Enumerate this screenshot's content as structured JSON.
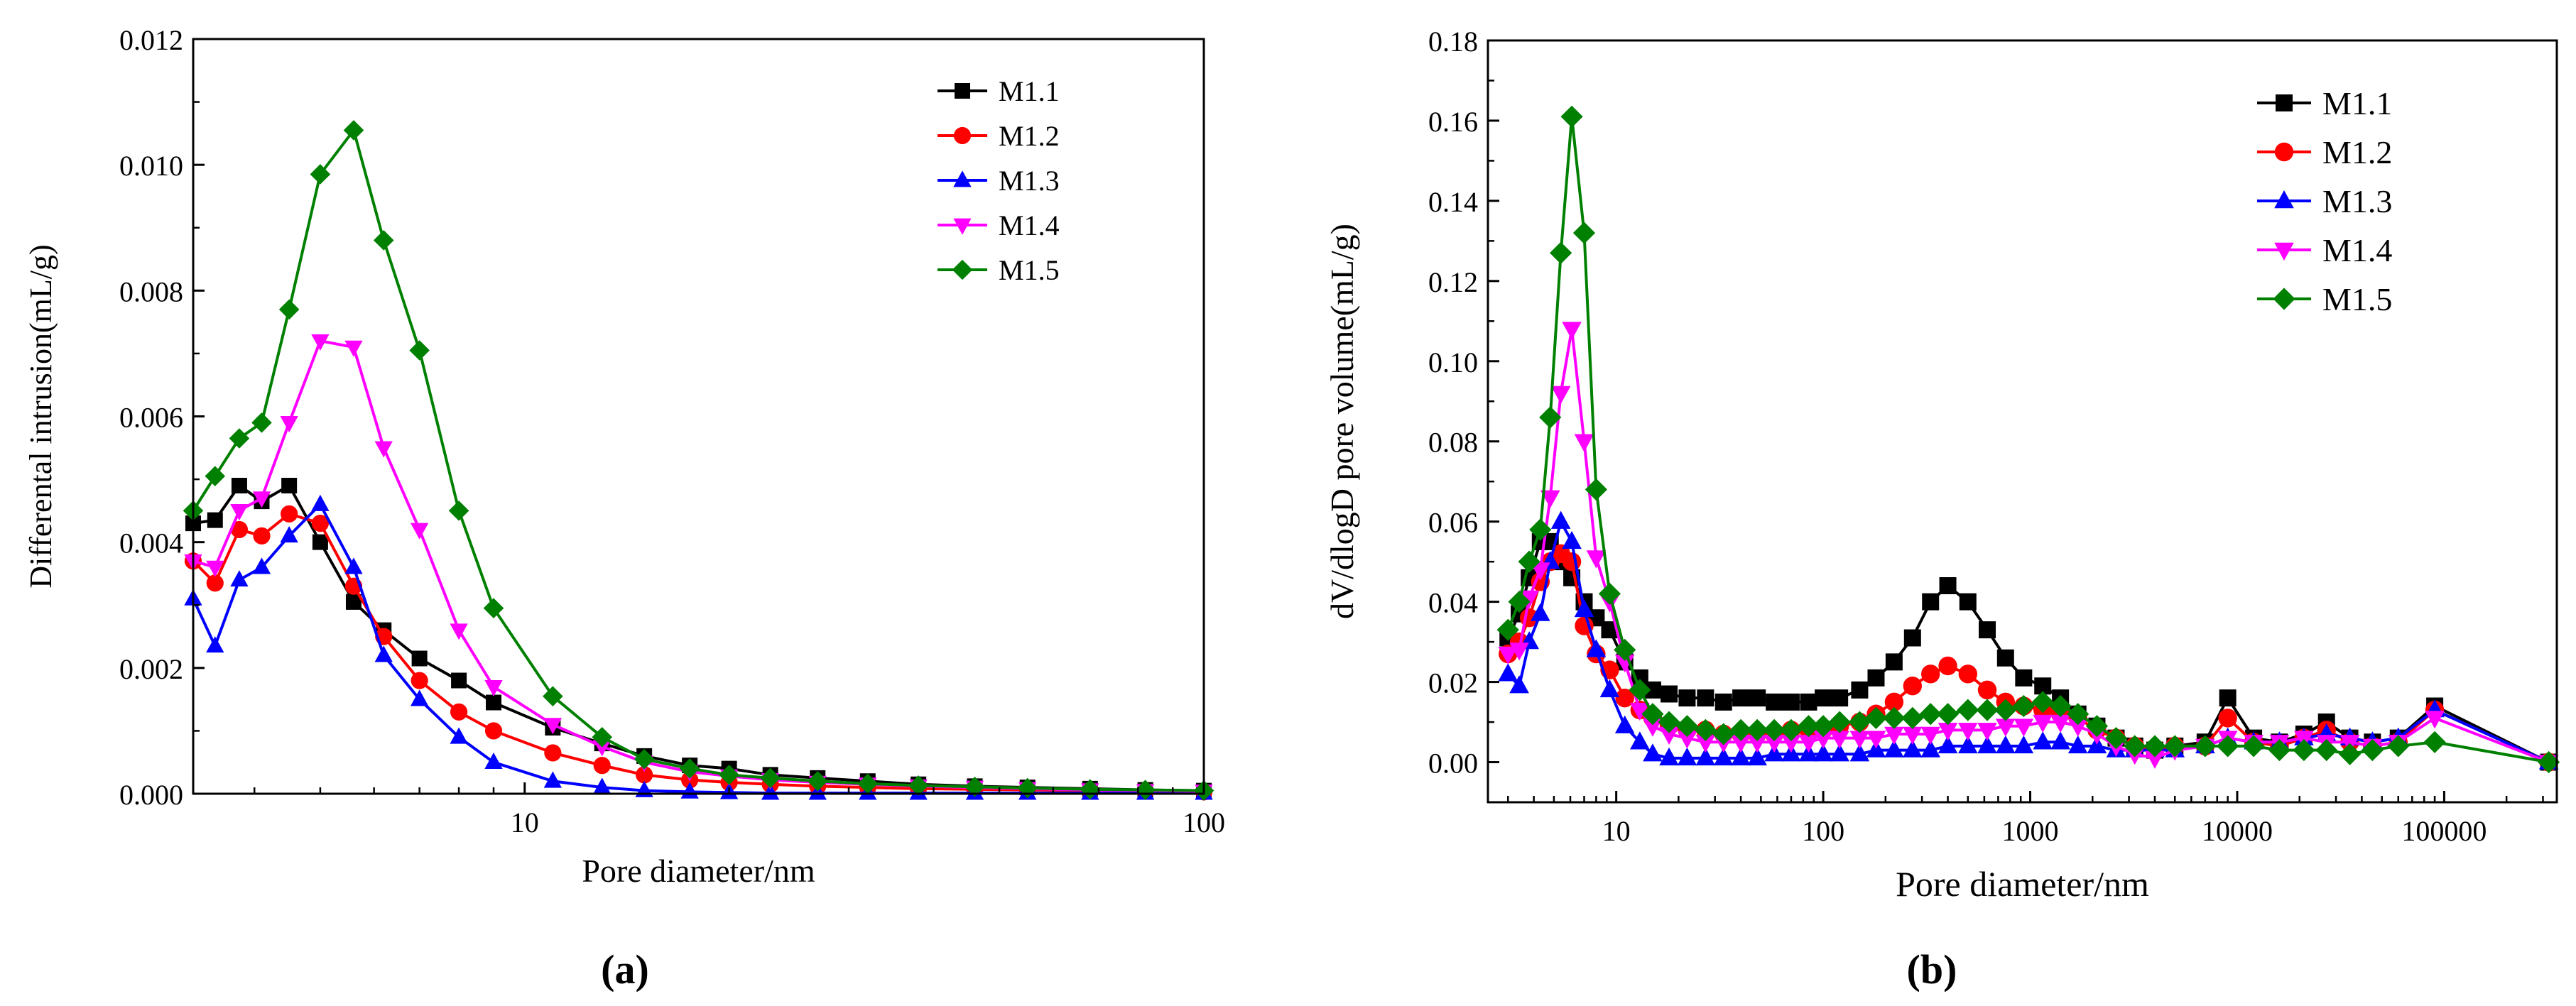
{
  "figure": {
    "panel_labels": [
      "(a)",
      "(b)"
    ]
  },
  "series_styles": [
    {
      "name": "M1.1",
      "color": "#000000",
      "marker": "square"
    },
    {
      "name": "M1.2",
      "color": "#ff0000",
      "marker": "circle"
    },
    {
      "name": "M1.3",
      "color": "#0000ff",
      "marker": "triangle-up"
    },
    {
      "name": "M1.4",
      "color": "#ff00ff",
      "marker": "triangle-down"
    },
    {
      "name": "M1.5",
      "color": "#008000",
      "marker": "diamond"
    }
  ],
  "chart_data": [
    {
      "type": "line",
      "panel": "(a)",
      "title": "",
      "xlabel": "Pore diameter/nm",
      "ylabel": "Differental intrusion(mL/g)",
      "xscale": "log",
      "xlim": [
        3.25,
        100
      ],
      "ylim": [
        0,
        0.012
      ],
      "xticks": [
        10,
        100
      ],
      "xtick_labels": [
        "10",
        "100"
      ],
      "yticks": [
        0,
        0.002,
        0.004,
        0.006,
        0.008,
        0.01,
        0.012
      ],
      "ytick_labels": [
        "0.000",
        "0.002",
        "0.004",
        "0.006",
        "0.008",
        "0.010",
        "0.012"
      ],
      "legend_position": "top-right",
      "x": [
        3.25,
        3.5,
        3.8,
        4.1,
        4.5,
        5.0,
        5.6,
        6.2,
        7.0,
        8.0,
        9.0,
        11.0,
        13.0,
        15.0,
        17.5,
        20.0,
        23.0,
        27.0,
        32.0,
        38.0,
        46.0,
        55.0,
        68.0,
        82.0,
        100.0
      ],
      "series": [
        {
          "name": "M1.1",
          "values": [
            0.0043,
            0.00435,
            0.0049,
            0.00465,
            0.0049,
            0.004,
            0.00305,
            0.0026,
            0.00215,
            0.0018,
            0.00145,
            0.00105,
            0.0008,
            0.0006,
            0.00045,
            0.0004,
            0.0003,
            0.00025,
            0.0002,
            0.00015,
            0.00012,
            0.0001,
            8e-05,
            6e-05,
            5e-05
          ]
        },
        {
          "name": "M1.2",
          "values": [
            0.0037,
            0.00335,
            0.0042,
            0.0041,
            0.00445,
            0.0043,
            0.0033,
            0.0025,
            0.0018,
            0.0013,
            0.001,
            0.00065,
            0.00045,
            0.0003,
            0.00022,
            0.00018,
            0.00015,
            0.00012,
            0.0001,
            8e-05,
            7e-05,
            6e-05,
            5e-05,
            4e-05,
            3e-05
          ]
        },
        {
          "name": "M1.3",
          "values": [
            0.0031,
            0.00235,
            0.0034,
            0.0036,
            0.0041,
            0.0046,
            0.0036,
            0.0022,
            0.0015,
            0.0009,
            0.0005,
            0.0002,
            0.0001,
            5e-05,
            3e-05,
            2e-05,
            1e-05,
            1e-05,
            1e-05,
            1e-05,
            1e-05,
            1e-05,
            1e-05,
            1e-05,
            1e-05
          ]
        },
        {
          "name": "M1.4",
          "values": [
            0.0037,
            0.0036,
            0.0045,
            0.0047,
            0.0059,
            0.0072,
            0.0071,
            0.0055,
            0.0042,
            0.0026,
            0.0017,
            0.0011,
            0.00075,
            0.0005,
            0.00035,
            0.00028,
            0.00022,
            0.00018,
            0.00015,
            0.00012,
            0.0001,
            8e-05,
            6e-05,
            5e-05,
            4e-05
          ]
        },
        {
          "name": "M1.5",
          "values": [
            0.0045,
            0.00505,
            0.00565,
            0.0059,
            0.0077,
            0.00985,
            0.01055,
            0.0088,
            0.00705,
            0.0045,
            0.00295,
            0.00155,
            0.0009,
            0.00055,
            0.0004,
            0.0003,
            0.00025,
            0.0002,
            0.00016,
            0.00013,
            0.00011,
            9e-05,
            7e-05,
            6e-05,
            5e-05
          ]
        }
      ]
    },
    {
      "type": "line",
      "panel": "(b)",
      "title": "",
      "xlabel": "Pore diameter/nm",
      "ylabel": "dV/dlogD pore volume(mL/g)",
      "xscale": "log",
      "xlim": [
        2.4,
        350000
      ],
      "ylim": [
        -0.01,
        0.18
      ],
      "xticks": [
        10,
        100,
        1000,
        10000,
        100000
      ],
      "xtick_labels": [
        "10",
        "100",
        "1000",
        "10000",
        "100000"
      ],
      "yticks": [
        0,
        0.02,
        0.04,
        0.06,
        0.08,
        0.1,
        0.12,
        0.14,
        0.16,
        0.18
      ],
      "ytick_labels": [
        "0.00",
        "0.02",
        "0.04",
        "0.06",
        "0.08",
        "0.10",
        "0.12",
        "0.14",
        "0.16",
        "0.18"
      ],
      "legend_position": "top-right",
      "x": [
        3.0,
        3.4,
        3.8,
        4.3,
        4.8,
        5.4,
        6.1,
        7.0,
        8.0,
        9.3,
        11,
        13,
        15,
        18,
        22,
        27,
        33,
        40,
        48,
        58,
        70,
        85,
        100,
        120,
        150,
        180,
        220,
        270,
        330,
        400,
        500,
        620,
        760,
        930,
        1150,
        1400,
        1700,
        2100,
        2600,
        3200,
        4000,
        5000,
        7000,
        9000,
        12000,
        16000,
        21000,
        27000,
        35000,
        45000,
        60000,
        90000,
        320000
      ],
      "series": [
        {
          "name": "M1.1",
          "values": [
            0.031,
            0.037,
            0.046,
            0.055,
            0.055,
            0.05,
            0.046,
            0.04,
            0.036,
            0.033,
            0.025,
            0.021,
            0.018,
            0.017,
            0.016,
            0.016,
            0.015,
            0.016,
            0.016,
            0.015,
            0.015,
            0.015,
            0.016,
            0.016,
            0.018,
            0.021,
            0.025,
            0.031,
            0.04,
            0.044,
            0.04,
            0.033,
            0.026,
            0.021,
            0.019,
            0.016,
            0.012,
            0.009,
            0.006,
            0.004,
            0.003,
            0.004,
            0.005,
            0.016,
            0.006,
            0.005,
            0.007,
            0.01,
            0.006,
            0.005,
            0.006,
            0.014,
            0.0
          ]
        },
        {
          "name": "M1.2",
          "values": [
            0.027,
            0.03,
            0.036,
            0.045,
            0.05,
            0.052,
            0.05,
            0.034,
            0.027,
            0.023,
            0.016,
            0.013,
            0.011,
            0.009,
            0.008,
            0.008,
            0.007,
            0.007,
            0.007,
            0.007,
            0.008,
            0.008,
            0.008,
            0.009,
            0.01,
            0.012,
            0.015,
            0.019,
            0.022,
            0.024,
            0.022,
            0.018,
            0.015,
            0.014,
            0.013,
            0.012,
            0.011,
            0.008,
            0.006,
            0.004,
            0.003,
            0.004,
            0.004,
            0.011,
            0.005,
            0.004,
            0.006,
            0.008,
            0.005,
            0.004,
            0.005,
            0.013,
            0.0
          ]
        },
        {
          "name": "M1.3",
          "values": [
            0.022,
            0.019,
            0.03,
            0.037,
            0.05,
            0.06,
            0.055,
            0.038,
            0.028,
            0.018,
            0.009,
            0.005,
            0.002,
            0.001,
            0.001,
            0.001,
            0.001,
            0.001,
            0.001,
            0.002,
            0.002,
            0.002,
            0.002,
            0.002,
            0.002,
            0.003,
            0.003,
            0.003,
            0.003,
            0.004,
            0.004,
            0.004,
            0.004,
            0.004,
            0.005,
            0.005,
            0.004,
            0.004,
            0.003,
            0.003,
            0.003,
            0.003,
            0.004,
            0.006,
            0.005,
            0.005,
            0.006,
            0.007,
            0.006,
            0.005,
            0.006,
            0.013,
            0.0
          ]
        },
        {
          "name": "M1.4",
          "values": [
            0.027,
            0.028,
            0.041,
            0.048,
            0.066,
            0.092,
            0.108,
            0.08,
            0.051,
            0.04,
            0.025,
            0.013,
            0.009,
            0.007,
            0.006,
            0.005,
            0.005,
            0.005,
            0.005,
            0.005,
            0.005,
            0.005,
            0.006,
            0.006,
            0.006,
            0.006,
            0.007,
            0.007,
            0.007,
            0.008,
            0.008,
            0.008,
            0.009,
            0.009,
            0.01,
            0.01,
            0.009,
            0.007,
            0.004,
            0.002,
            0.001,
            0.003,
            0.004,
            0.006,
            0.005,
            0.005,
            0.006,
            0.005,
            0.005,
            0.004,
            0.005,
            0.011,
            0.0
          ]
        },
        {
          "name": "M1.5",
          "values": [
            0.033,
            0.04,
            0.05,
            0.058,
            0.086,
            0.127,
            0.161,
            0.132,
            0.068,
            0.042,
            0.028,
            0.018,
            0.012,
            0.01,
            0.009,
            0.008,
            0.007,
            0.008,
            0.008,
            0.008,
            0.008,
            0.009,
            0.009,
            0.01,
            0.01,
            0.011,
            0.011,
            0.011,
            0.012,
            0.012,
            0.013,
            0.013,
            0.013,
            0.014,
            0.015,
            0.014,
            0.012,
            0.009,
            0.006,
            0.004,
            0.004,
            0.004,
            0.004,
            0.004,
            0.004,
            0.003,
            0.003,
            0.003,
            0.002,
            0.003,
            0.004,
            0.005,
            0.0
          ]
        }
      ]
    }
  ]
}
